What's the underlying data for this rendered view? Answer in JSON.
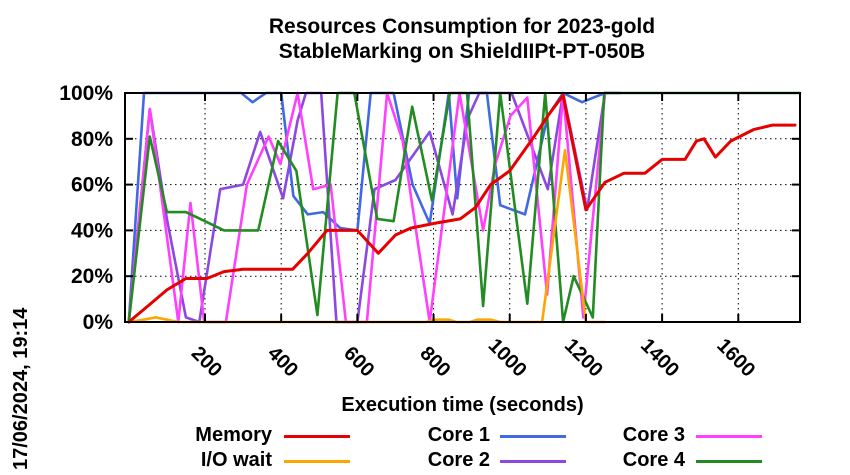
{
  "title": {
    "line1": "Resources Consumption for 2023-gold",
    "line2": "StableMarking on ShieldIIPt-PT-050B"
  },
  "timestamp_label": "17/06/2024, 19:14",
  "chart_data": {
    "type": "line",
    "title": "Resources Consumption for 2023-gold StableMarking on ShieldIIPt-PT-050B",
    "xlabel": "Execution time (seconds)",
    "ylabel": "",
    "xlim": [
      -10,
      1762
    ],
    "ylim": [
      0,
      100
    ],
    "x_ticks": [
      200,
      400,
      600,
      800,
      1000,
      1200,
      1400,
      1600
    ],
    "y_ticks": [
      0,
      20,
      40,
      60,
      80,
      100
    ],
    "y_tick_suffix": "%",
    "grid": true,
    "legend_position": "bottom",
    "series": [
      {
        "name": "Core 1",
        "color": "#4169e1",
        "points": [
          [
            0,
            0
          ],
          [
            40,
            100
          ],
          [
            295,
            100
          ],
          [
            325,
            96
          ],
          [
            360,
            100
          ],
          [
            400,
            100
          ],
          [
            432,
            55
          ],
          [
            470,
            47
          ],
          [
            510,
            48
          ],
          [
            555,
            41
          ],
          [
            600,
            40
          ],
          [
            635,
            100
          ],
          [
            695,
            100
          ],
          [
            745,
            60
          ],
          [
            790,
            43
          ],
          [
            840,
            100
          ],
          [
            862,
            54
          ],
          [
            893,
            100
          ],
          [
            940,
            100
          ],
          [
            975,
            51
          ],
          [
            1040,
            47
          ],
          [
            1100,
            90
          ],
          [
            1140,
            100
          ],
          [
            1190,
            96
          ],
          [
            1250,
            100
          ],
          [
            1290,
            100
          ]
        ]
      },
      {
        "name": "Core 2",
        "color": "#8c48e0",
        "points": [
          [
            0,
            0
          ],
          [
            55,
            93
          ],
          [
            100,
            45
          ],
          [
            150,
            2
          ],
          [
            185,
            0
          ],
          [
            240,
            58
          ],
          [
            300,
            60
          ],
          [
            345,
            83
          ],
          [
            405,
            54
          ],
          [
            443,
            88
          ],
          [
            465,
            100
          ],
          [
            505,
            100
          ],
          [
            545,
            0
          ],
          [
            600,
            0
          ],
          [
            645,
            58
          ],
          [
            700,
            62
          ],
          [
            790,
            83
          ],
          [
            850,
            47
          ],
          [
            890,
            89
          ],
          [
            920,
            100
          ],
          [
            1005,
            100
          ],
          [
            1100,
            58
          ],
          [
            1140,
            100
          ],
          [
            1203,
            49
          ],
          [
            1250,
            100
          ]
        ]
      },
      {
        "name": "Core 3",
        "color": "#ff40ff",
        "points": [
          [
            0,
            0
          ],
          [
            55,
            93
          ],
          [
            130,
            0
          ],
          [
            162,
            52
          ],
          [
            198,
            0
          ],
          [
            255,
            0
          ],
          [
            310,
            60
          ],
          [
            367,
            81
          ],
          [
            398,
            69
          ],
          [
            443,
            100
          ],
          [
            484,
            58
          ],
          [
            530,
            60
          ],
          [
            570,
            0
          ],
          [
            625,
            0
          ],
          [
            678,
            100
          ],
          [
            719,
            79
          ],
          [
            790,
            0
          ],
          [
            868,
            100
          ],
          [
            930,
            40
          ],
          [
            962,
            69
          ],
          [
            1002,
            90
          ],
          [
            1046,
            98
          ],
          [
            1098,
            12
          ],
          [
            1140,
            100
          ],
          [
            1193,
            2
          ],
          [
            1250,
            100
          ]
        ]
      },
      {
        "name": "Core 4",
        "color": "#228b22",
        "points": [
          [
            0,
            0
          ],
          [
            55,
            81
          ],
          [
            100,
            48
          ],
          [
            150,
            48
          ],
          [
            200,
            44
          ],
          [
            250,
            40
          ],
          [
            340,
            40
          ],
          [
            392,
            79
          ],
          [
            440,
            66
          ],
          [
            495,
            3
          ],
          [
            548,
            100
          ],
          [
            592,
            100
          ],
          [
            652,
            45
          ],
          [
            695,
            44
          ],
          [
            744,
            94
          ],
          [
            796,
            53
          ],
          [
            843,
            100
          ],
          [
            888,
            100
          ],
          [
            930,
            7
          ],
          [
            975,
            100
          ],
          [
            1046,
            8
          ],
          [
            1093,
            100
          ],
          [
            1140,
            0
          ],
          [
            1168,
            20
          ],
          [
            1218,
            2
          ],
          [
            1248,
            100
          ],
          [
            1762,
            100
          ]
        ]
      },
      {
        "name": "I/O wait",
        "color": "#ffa500",
        "points": [
          [
            0,
            0
          ],
          [
            40,
            1
          ],
          [
            70,
            2
          ],
          [
            100,
            1
          ],
          [
            130,
            0
          ],
          [
            780,
            0
          ],
          [
            800,
            1
          ],
          [
            840,
            1
          ],
          [
            860,
            0
          ],
          [
            895,
            0
          ],
          [
            915,
            1
          ],
          [
            950,
            1
          ],
          [
            975,
            0
          ],
          [
            1085,
            0
          ],
          [
            1145,
            75
          ],
          [
            1200,
            0
          ],
          [
            1250,
            0
          ]
        ]
      },
      {
        "name": "Memory",
        "color": "#e60000",
        "points": [
          [
            0,
            0
          ],
          [
            50,
            7
          ],
          [
            100,
            14
          ],
          [
            150,
            19
          ],
          [
            205,
            19
          ],
          [
            250,
            22
          ],
          [
            300,
            23
          ],
          [
            430,
            23
          ],
          [
            470,
            30
          ],
          [
            520,
            40
          ],
          [
            600,
            40
          ],
          [
            655,
            30
          ],
          [
            700,
            38
          ],
          [
            740,
            41
          ],
          [
            800,
            43
          ],
          [
            870,
            45
          ],
          [
            910,
            50
          ],
          [
            950,
            60
          ],
          [
            1000,
            66
          ],
          [
            1060,
            80
          ],
          [
            1100,
            90
          ],
          [
            1140,
            99
          ],
          [
            1200,
            49
          ],
          [
            1250,
            61
          ],
          [
            1300,
            65
          ],
          [
            1355,
            65
          ],
          [
            1400,
            71
          ],
          [
            1460,
            71
          ],
          [
            1490,
            79
          ],
          [
            1510,
            80
          ],
          [
            1540,
            72
          ],
          [
            1580,
            79
          ],
          [
            1640,
            84
          ],
          [
            1690,
            86
          ],
          [
            1749,
            86
          ]
        ]
      }
    ],
    "legend": {
      "columns": [
        [
          "Memory",
          "I/O wait"
        ],
        [
          "Core 1",
          "Core 2"
        ],
        [
          "Core 3",
          "Core 4"
        ]
      ]
    }
  }
}
